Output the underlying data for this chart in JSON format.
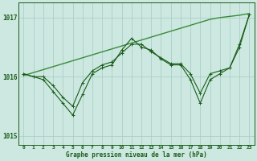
{
  "xlabel": "Graphe pression niveau de la mer (hPa)",
  "ylabel": "",
  "background_color": "#cce8e0",
  "plot_background": "#cce8e0",
  "grid_color": "#aacfc8",
  "line_color_dark": "#1a5c1a",
  "line_color_light": "#3a8a3a",
  "x_ticks": [
    0,
    1,
    2,
    3,
    4,
    5,
    6,
    7,
    8,
    9,
    10,
    11,
    12,
    13,
    14,
    15,
    16,
    17,
    18,
    19,
    20,
    21,
    22,
    23
  ],
  "ylim": [
    1014.85,
    1017.25
  ],
  "yticks": [
    1015,
    1016,
    1017
  ],
  "series_jagged": [
    1016.05,
    1016.0,
    1015.95,
    1015.75,
    1015.55,
    1015.35,
    1015.7,
    1016.05,
    1016.15,
    1016.2,
    1016.45,
    1016.65,
    1016.5,
    1016.45,
    1016.3,
    1016.2,
    1016.2,
    1015.95,
    1015.55,
    1015.95,
    1016.05,
    1016.15,
    1016.5,
    1017.05
  ],
  "series_smooth_wavy": [
    1016.05,
    1016.0,
    1016.0,
    1015.85,
    1015.65,
    1015.5,
    1015.9,
    1016.1,
    1016.2,
    1016.25,
    1016.4,
    1016.55,
    1016.55,
    1016.42,
    1016.32,
    1016.22,
    1016.22,
    1016.05,
    1015.72,
    1016.05,
    1016.1,
    1016.15,
    1016.55,
    1017.05
  ],
  "series_linear": [
    1016.02,
    1016.07,
    1016.12,
    1016.17,
    1016.22,
    1016.27,
    1016.32,
    1016.37,
    1016.42,
    1016.47,
    1016.52,
    1016.57,
    1016.62,
    1016.67,
    1016.72,
    1016.77,
    1016.82,
    1016.87,
    1016.92,
    1016.97,
    1017.0,
    1017.02,
    1017.04,
    1017.07
  ]
}
